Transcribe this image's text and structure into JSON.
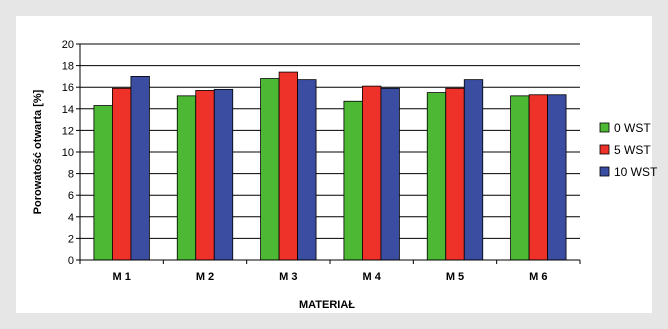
{
  "chart_data": {
    "type": "bar",
    "title": "",
    "xlabel": "MATERIAŁ",
    "ylabel": "Porowatość otwarta [%]",
    "ylim": [
      0,
      20
    ],
    "yticks": [
      0,
      2,
      4,
      6,
      8,
      10,
      12,
      14,
      16,
      18,
      20
    ],
    "grid": true,
    "legend_position": "right",
    "categories": [
      "M 1",
      "M 2",
      "M 3",
      "M 4",
      "M 5",
      "M 6"
    ],
    "series": [
      {
        "name": "0 WST",
        "color": "#4cb833",
        "values": [
          14.3,
          15.2,
          16.8,
          14.7,
          15.5,
          15.2
        ]
      },
      {
        "name": "5 WST",
        "color": "#ee3129",
        "values": [
          15.9,
          15.7,
          17.4,
          16.1,
          15.9,
          15.3
        ]
      },
      {
        "name": "10 WST",
        "color": "#3a4da1",
        "values": [
          17.0,
          15.8,
          16.7,
          15.9,
          16.7,
          15.3
        ]
      }
    ]
  }
}
